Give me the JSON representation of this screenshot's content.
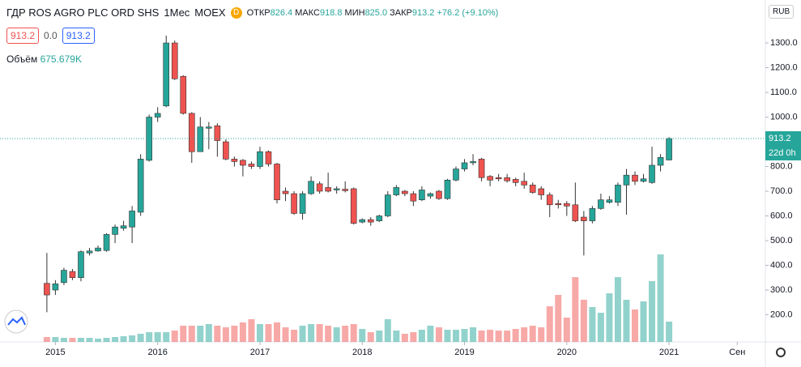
{
  "header": {
    "symbol": "ГДР ROS AGRO PLC ORD SHS",
    "interval": "1Мес",
    "exchange": "MOEX",
    "badge": "D",
    "open_label": "ОТКР",
    "open": "826.4",
    "high_label": "МАКС",
    "high": "918.8",
    "low_label": "МИН",
    "low": "825.0",
    "close_label": "ЗАКР",
    "close": "913.2",
    "change": "+76.2 (+9.10%)",
    "bid": "913.2",
    "spread": "0.0",
    "ask": "913.2",
    "currency": "RUB"
  },
  "chart_data": {
    "type": "candlestick",
    "x": [
      0,
      1,
      2,
      3,
      4,
      5,
      6,
      7,
      8,
      9,
      10,
      11,
      12,
      13,
      14,
      15,
      16,
      17,
      18,
      19,
      20,
      21,
      22,
      23,
      24,
      25,
      26,
      27,
      28,
      29,
      30,
      31,
      32,
      33,
      34,
      35,
      36,
      37,
      38,
      39,
      40,
      41,
      42,
      43,
      44,
      45,
      46,
      47,
      48,
      49,
      50,
      51,
      52,
      53,
      54,
      55,
      56,
      57,
      58,
      59,
      60,
      61,
      62,
      63,
      64,
      65,
      66,
      67,
      68,
      69,
      70,
      71,
      72,
      73
    ],
    "open": [
      327,
      300,
      330,
      375,
      350,
      450,
      458,
      460,
      525,
      550,
      555,
      615,
      825,
      1000,
      1045,
      1300,
      1165,
      1015,
      860,
      955,
      965,
      900,
      830,
      825,
      810,
      800,
      860,
      810,
      700,
      690,
      610,
      690,
      730,
      715,
      705,
      708,
      710,
      575,
      585,
      580,
      600,
      685,
      700,
      690,
      665,
      680,
      700,
      670,
      745,
      790,
      815,
      830,
      760,
      755,
      755,
      748,
      740,
      725,
      710,
      685,
      650,
      650,
      645,
      595,
      580,
      630,
      655,
      655,
      725,
      765,
      740,
      735,
      805,
      826.4
    ],
    "high": [
      450,
      340,
      390,
      385,
      460,
      470,
      480,
      530,
      565,
      580,
      640,
      850,
      1010,
      1040,
      1330,
      1310,
      1170,
      1020,
      1000,
      980,
      975,
      910,
      840,
      830,
      820,
      880,
      865,
      815,
      715,
      700,
      700,
      760,
      740,
      775,
      720,
      740,
      715,
      590,
      595,
      605,
      700,
      725,
      705,
      700,
      720,
      695,
      705,
      750,
      800,
      830,
      850,
      835,
      765,
      770,
      770,
      755,
      775,
      735,
      720,
      695,
      665,
      660,
      735,
      620,
      640,
      690,
      680,
      735,
      790,
      780,
      770,
      880,
      850,
      918.8
    ],
    "low": [
      210,
      280,
      320,
      340,
      335,
      440,
      455,
      455,
      490,
      540,
      490,
      600,
      820,
      980,
      1040,
      1150,
      1010,
      815,
      860,
      870,
      840,
      825,
      800,
      760,
      790,
      790,
      800,
      650,
      660,
      605,
      585,
      685,
      690,
      695,
      690,
      695,
      565,
      570,
      560,
      575,
      595,
      680,
      680,
      640,
      660,
      670,
      665,
      665,
      740,
      780,
      805,
      740,
      720,
      740,
      735,
      720,
      710,
      690,
      665,
      595,
      630,
      600,
      575,
      440,
      570,
      625,
      650,
      640,
      605,
      725,
      735,
      730,
      780,
      825.0
    ],
    "close": [
      280,
      325,
      380,
      350,
      455,
      458,
      470,
      525,
      555,
      560,
      620,
      830,
      1000,
      1015,
      1300,
      1155,
      1015,
      860,
      960,
      960,
      905,
      830,
      820,
      805,
      800,
      860,
      810,
      665,
      690,
      610,
      690,
      740,
      700,
      700,
      710,
      702,
      570,
      585,
      575,
      600,
      685,
      715,
      690,
      660,
      705,
      690,
      670,
      745,
      790,
      815,
      820,
      755,
      745,
      750,
      742,
      735,
      725,
      695,
      685,
      645,
      645,
      640,
      580,
      580,
      630,
      665,
      665,
      725,
      765,
      740,
      750,
      805,
      837,
      913.2
    ],
    "volume": [
      162000,
      162000,
      135000,
      135000,
      135000,
      135000,
      108000,
      135000,
      162000,
      189000,
      216000,
      270000,
      324000,
      324000,
      324000,
      378000,
      540000,
      540000,
      540000,
      594000,
      540000,
      486000,
      540000,
      648000,
      756000,
      594000,
      594000,
      648000,
      486000,
      405000,
      540000,
      594000,
      594000,
      540000,
      486000,
      540000,
      594000,
      432000,
      324000,
      378000,
      756000,
      378000,
      270000,
      324000,
      405000,
      540000,
      486000,
      405000,
      405000,
      432000,
      486000,
      378000,
      405000,
      378000,
      378000,
      432000,
      486000,
      540000,
      486000,
      1188000,
      1566000,
      810000,
      2160000,
      1404000,
      1161000,
      972000,
      1620000,
      2160000,
      1404000,
      1080000,
      1350000,
      2025000,
      2916000,
      675679
    ],
    "volume_max": 11400000,
    "volume_label": "Объём",
    "volume_value_label": "675.679K",
    "up_color": "#26a69a",
    "down_color": "#ef5350",
    "ylim": [
      90,
      1474
    ],
    "yticks": [
      {
        "value": 200,
        "label": "200.0"
      },
      {
        "value": 300,
        "label": "300.0"
      },
      {
        "value": 400,
        "label": "400.0"
      },
      {
        "value": 500,
        "label": "500.0"
      },
      {
        "value": 600,
        "label": "600.0"
      },
      {
        "value": 700,
        "label": "700.0"
      },
      {
        "value": 800,
        "label": "800.0"
      },
      {
        "value": 1000,
        "label": "1000.0"
      },
      {
        "value": 1100,
        "label": "1100.0"
      },
      {
        "value": 1200,
        "label": "1200.0"
      },
      {
        "value": 1300,
        "label": "1300.0"
      }
    ],
    "xlim": [
      -5.5,
      84.3
    ],
    "xticks": [
      {
        "value": 1,
        "label": "2015"
      },
      {
        "value": 13,
        "label": "2016"
      },
      {
        "value": 25,
        "label": "2017"
      },
      {
        "value": 37,
        "label": "2018"
      },
      {
        "value": 49,
        "label": "2019"
      },
      {
        "value": 61,
        "label": "2020"
      },
      {
        "value": 73,
        "label": "2021"
      },
      {
        "value": 81,
        "label": "Сен"
      }
    ],
    "last_price_label": "913.2",
    "countdown_label": "22d 0h"
  }
}
